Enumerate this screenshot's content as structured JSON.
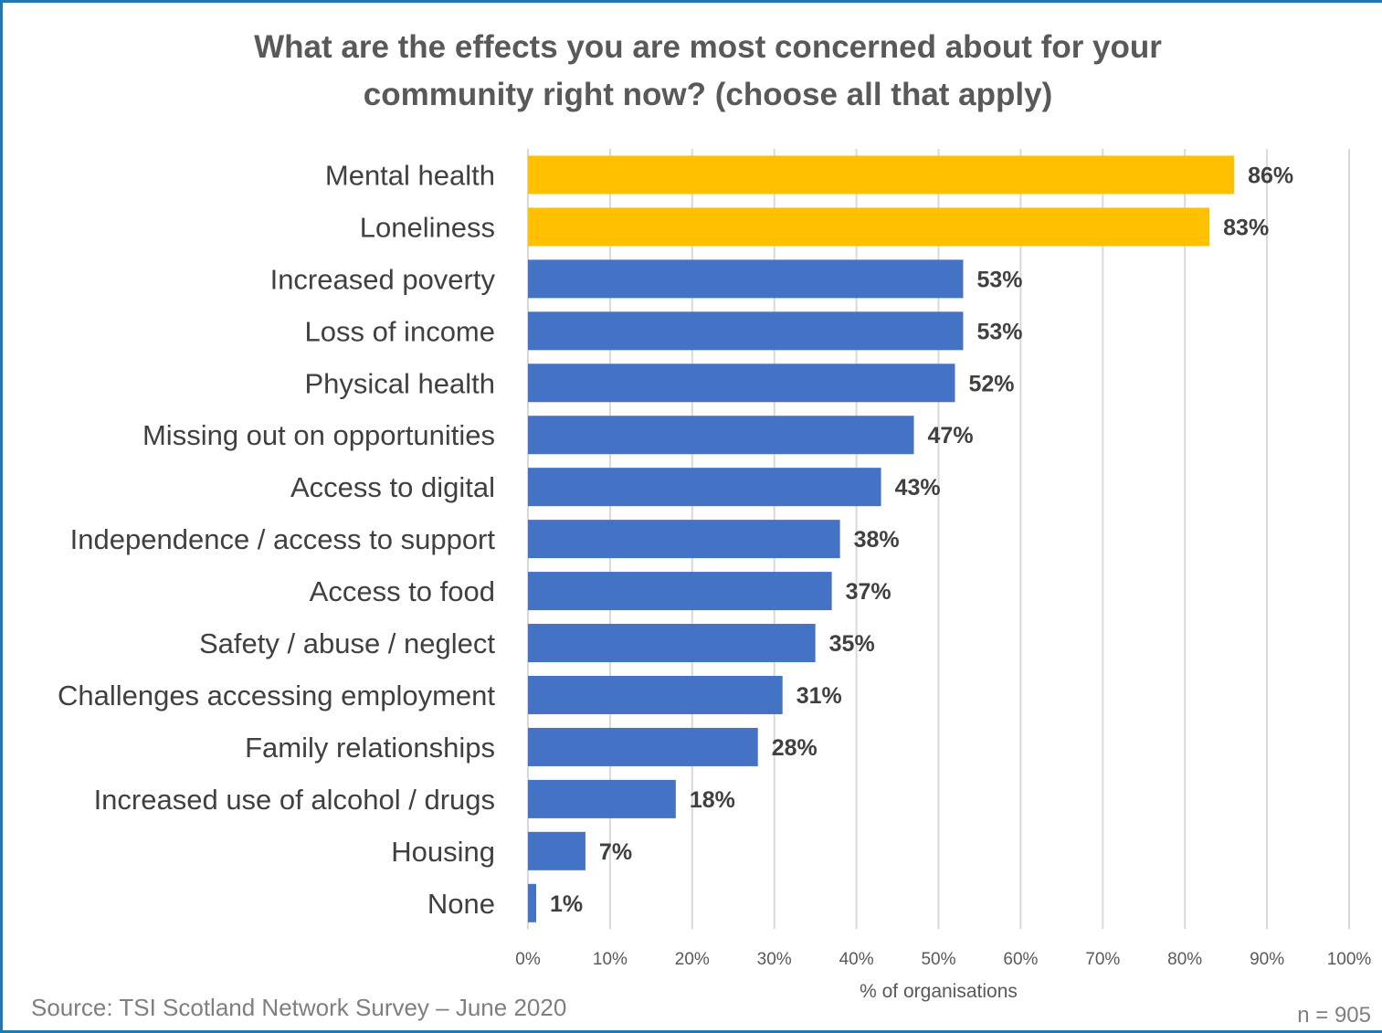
{
  "chart_data": {
    "type": "bar",
    "orientation": "horizontal",
    "title_lines": [
      "What are the effects you are most concerned about for your",
      "community right now?  (choose all that apply)"
    ],
    "xlabel": "% of organisations",
    "xlim": [
      0,
      100
    ],
    "xticks": [
      "0%",
      "10%",
      "20%",
      "30%",
      "40%",
      "50%",
      "60%",
      "70%",
      "80%",
      "90%",
      "100%"
    ],
    "grid": true,
    "categories": [
      "Mental health",
      "Loneliness",
      "Increased poverty",
      "Loss of income",
      "Physical health",
      "Missing out on opportunities",
      "Access to digital",
      "Independence / access to support",
      "Access to food",
      "Safety / abuse / neglect",
      "Challenges accessing employment",
      "Family relationships",
      "Increased use of alcohol / drugs",
      "Housing",
      "None"
    ],
    "values": [
      86,
      83,
      53,
      53,
      52,
      47,
      43,
      38,
      37,
      35,
      31,
      28,
      18,
      7,
      1
    ],
    "data_labels": [
      "86%",
      "83%",
      "53%",
      "53%",
      "52%",
      "47%",
      "43%",
      "38%",
      "37%",
      "35%",
      "31%",
      "28%",
      "18%",
      "7%",
      "1%"
    ],
    "highlighted": [
      true,
      true,
      false,
      false,
      false,
      false,
      false,
      false,
      false,
      false,
      false,
      false,
      false,
      false,
      false
    ],
    "colors": {
      "highlight": "#FFC000",
      "default": "#4472C4",
      "grid": "#d9d9d9",
      "frame": "#1f77b4"
    }
  },
  "footer": {
    "source": "Source: TSI Scotland Network Survey – June 2020",
    "n": "n = 905"
  }
}
